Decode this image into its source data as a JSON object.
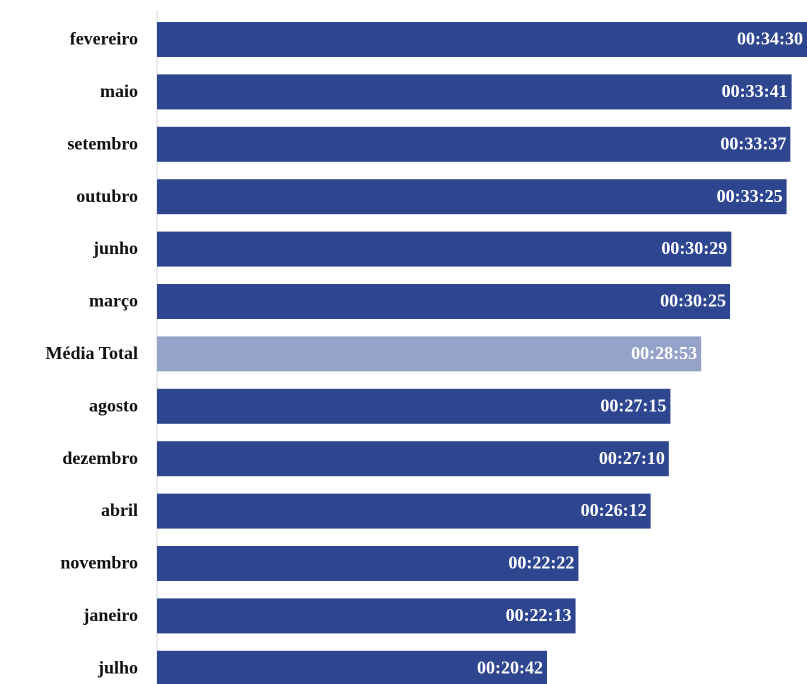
{
  "chart_data": {
    "type": "barh",
    "categories": [
      "fevereiro",
      "maio",
      "setembro",
      "outubro",
      "junho",
      "março",
      "Média Total",
      "agosto",
      "dezembro",
      "abril",
      "novembro",
      "janeiro",
      "julho"
    ],
    "values": [
      2070,
      2021,
      2017,
      2005,
      1829,
      1825,
      1733,
      1635,
      1630,
      1572,
      1342,
      1333,
      1242
    ],
    "value_labels": [
      "00:34:30",
      "00:33:41",
      "00:33:37",
      "00:33:25",
      "00:30:29",
      "00:30:25",
      "00:28:53",
      "00:27:15",
      "00:27:10",
      "00:26:12",
      "00:22:22",
      "00:22:13",
      "00:20:42"
    ],
    "colors": [
      "#2e4590",
      "#2e4590",
      "#2e4590",
      "#2e4590",
      "#2e4590",
      "#2e4590",
      "#95a3c9",
      "#2e4590",
      "#2e4590",
      "#2e4590",
      "#2e4590",
      "#2e4590",
      "#2e4590"
    ]
  }
}
